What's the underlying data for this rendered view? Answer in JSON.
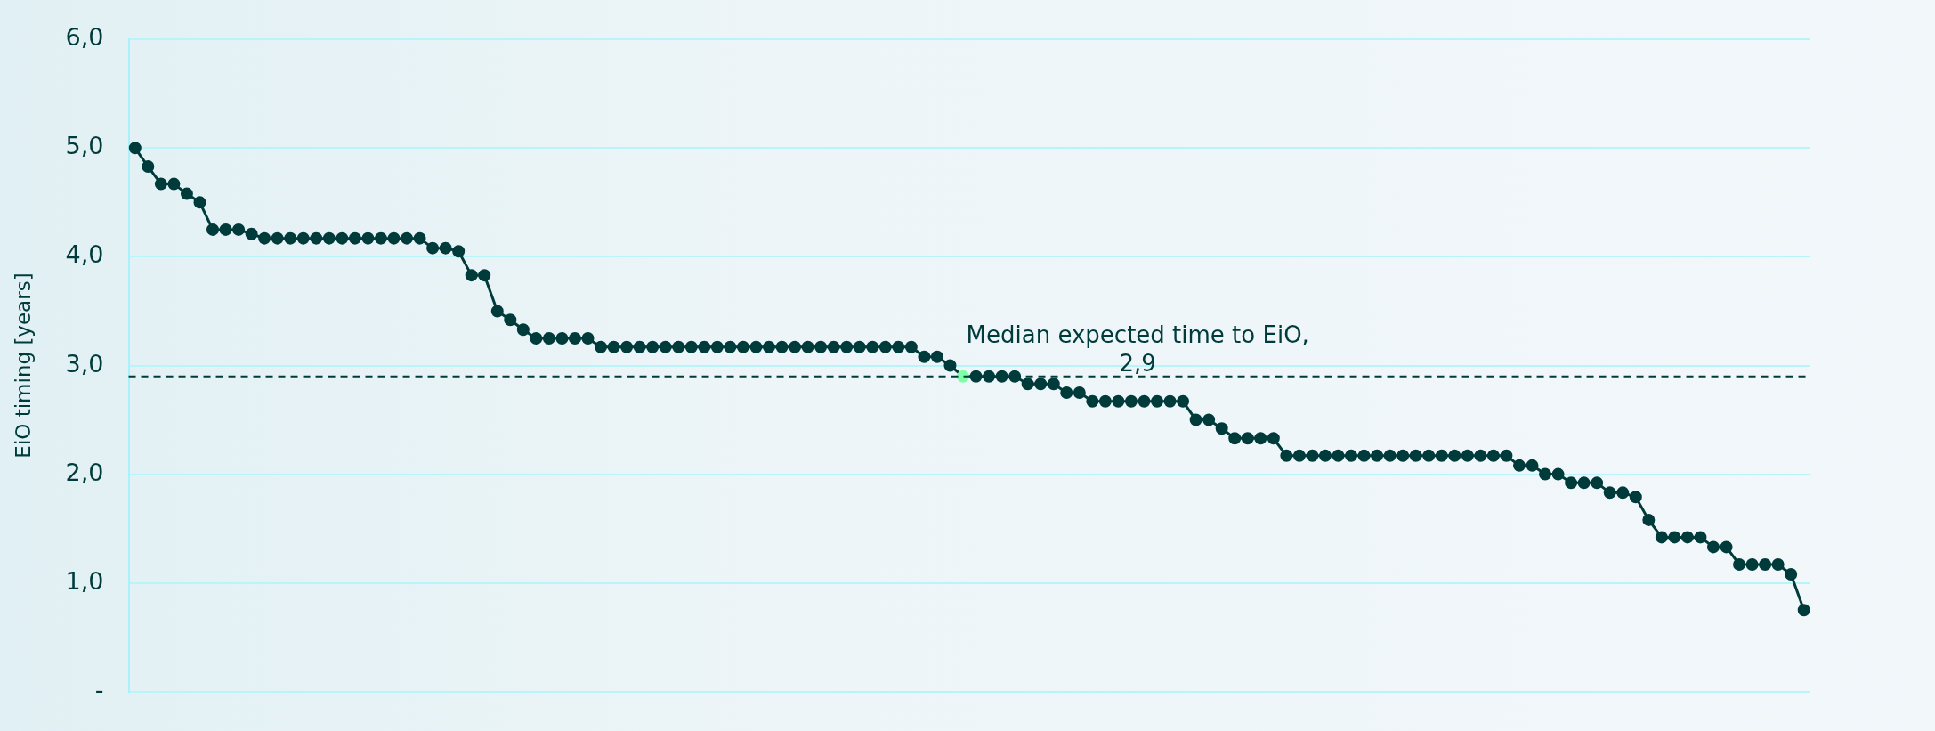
{
  "chart_data": {
    "type": "line",
    "ylabel": "EiO timing [years]",
    "categories": [
      null,
      null,
      null,
      null,
      null,
      null,
      null,
      null,
      null,
      null,
      null,
      null,
      null,
      null,
      null,
      null,
      null,
      null,
      null,
      null,
      null,
      null,
      null,
      null,
      null,
      null,
      null,
      null,
      null,
      null,
      null,
      null,
      null,
      null,
      null,
      null,
      null,
      null,
      null,
      null,
      null,
      null,
      null,
      null,
      null,
      null,
      null,
      null,
      null,
      null,
      null,
      null,
      null,
      null,
      null,
      null,
      null,
      null,
      null,
      null,
      null,
      null,
      null,
      null,
      null,
      null,
      null,
      null,
      null,
      null,
      null,
      null,
      null,
      null,
      null,
      null,
      null,
      null,
      null,
      null,
      null,
      null,
      null,
      null,
      null,
      null,
      null,
      null,
      null,
      null,
      null,
      null,
      null,
      null,
      null,
      null,
      null,
      null,
      null,
      null,
      null,
      null,
      null,
      null,
      null,
      null,
      null,
      null,
      null,
      null,
      null,
      null,
      null,
      null,
      null,
      null,
      null,
      null,
      null,
      null,
      null,
      null,
      null,
      null,
      null,
      null,
      null,
      null,
      null,
      null
    ],
    "series": [
      {
        "color": "#003b3b",
        "colors": [
          "#003b3b",
          "#003b3b",
          "#003b3b",
          "#003b3b",
          "#003b3b",
          "#003b3b",
          "#003b3b",
          "#003b3b",
          "#003b3b",
          "#003b3b",
          "#003b3b",
          "#003b3b",
          "#003b3b",
          "#003b3b",
          "#003b3b",
          "#003b3b",
          "#003b3b",
          "#003b3b",
          "#003b3b",
          "#003b3b",
          "#003b3b",
          "#003b3b",
          "#003b3b",
          "#003b3b",
          "#003b3b",
          "#003b3b",
          "#003b3b",
          "#003b3b",
          "#003b3b",
          "#003b3b",
          "#003b3b",
          "#003b3b",
          "#003b3b",
          "#003b3b",
          "#003b3b",
          "#003b3b",
          "#003b3b",
          "#003b3b",
          "#003b3b",
          "#003b3b",
          "#003b3b",
          "#003b3b",
          "#003b3b",
          "#003b3b",
          "#003b3b",
          "#003b3b",
          "#003b3b",
          "#003b3b",
          "#003b3b",
          "#003b3b",
          "#003b3b",
          "#003b3b",
          "#003b3b",
          "#003b3b",
          "#003b3b",
          "#003b3b",
          "#003b3b",
          "#003b3b",
          "#003b3b",
          "#003b3b",
          "#003b3b",
          "#003b3b",
          "#003b3b",
          "#003b3b",
          "#80ffa8",
          "#003b3b",
          "#003b3b",
          "#003b3b",
          "#003b3b",
          "#003b3b",
          "#003b3b",
          "#003b3b",
          "#003b3b",
          "#003b3b",
          "#003b3b",
          "#003b3b",
          "#003b3b",
          "#003b3b",
          "#003b3b",
          "#003b3b",
          "#003b3b",
          "#003b3b",
          "#003b3b",
          "#003b3b",
          "#003b3b",
          "#003b3b",
          "#003b3b",
          "#003b3b",
          "#003b3b",
          "#003b3b",
          "#003b3b",
          "#003b3b",
          "#003b3b",
          "#003b3b",
          "#003b3b",
          "#003b3b",
          "#003b3b",
          "#003b3b",
          "#003b3b",
          "#003b3b",
          "#003b3b",
          "#003b3b",
          "#003b3b",
          "#003b3b",
          "#003b3b",
          "#003b3b",
          "#003b3b",
          "#003b3b",
          "#003b3b",
          "#003b3b",
          "#003b3b",
          "#003b3b",
          "#003b3b",
          "#003b3b",
          "#003b3b",
          "#003b3b",
          "#003b3b",
          "#003b3b",
          "#003b3b",
          "#003b3b",
          "#003b3b",
          "#003b3b",
          "#003b3b",
          "#003b3b",
          "#003b3b",
          "#003b3b",
          "#003b3b",
          "#003b3b",
          "#003b3b",
          "#003b3b"
        ],
        "values": [
          5.0,
          4.83,
          4.67,
          4.67,
          4.58,
          4.5,
          4.25,
          4.25,
          4.25,
          4.21,
          4.17,
          4.17,
          4.17,
          4.17,
          4.17,
          4.17,
          4.17,
          4.17,
          4.17,
          4.17,
          4.17,
          4.17,
          4.17,
          4.08,
          4.08,
          4.05,
          3.83,
          3.83,
          3.5,
          3.42,
          3.33,
          3.25,
          3.25,
          3.25,
          3.25,
          3.25,
          3.17,
          3.17,
          3.17,
          3.17,
          3.17,
          3.17,
          3.17,
          3.17,
          3.17,
          3.17,
          3.17,
          3.17,
          3.17,
          3.17,
          3.17,
          3.17,
          3.17,
          3.17,
          3.17,
          3.17,
          3.17,
          3.17,
          3.17,
          3.17,
          3.17,
          3.08,
          3.08,
          3.0,
          2.9,
          2.9,
          2.9,
          2.9,
          2.9,
          2.83,
          2.83,
          2.83,
          2.75,
          2.75,
          2.67,
          2.67,
          2.67,
          2.67,
          2.67,
          2.67,
          2.67,
          2.67,
          2.5,
          2.5,
          2.42,
          2.33,
          2.33,
          2.33,
          2.33,
          2.17,
          2.17,
          2.17,
          2.17,
          2.17,
          2.17,
          2.17,
          2.17,
          2.17,
          2.17,
          2.17,
          2.17,
          2.17,
          2.17,
          2.17,
          2.17,
          2.17,
          2.17,
          2.08,
          2.08,
          2.0,
          2.0,
          1.92,
          1.92,
          1.92,
          1.83,
          1.83,
          1.79,
          1.58,
          1.42,
          1.42,
          1.42,
          1.42,
          1.33,
          1.33,
          1.17,
          1.17,
          1.17,
          1.17,
          1.08,
          0.75
        ]
      }
    ],
    "ylim": [
      0,
      6
    ],
    "yticks": [
      {
        "value": 0,
        "label": "-"
      },
      {
        "value": 1,
        "label": "1,0"
      },
      {
        "value": 2,
        "label": "2,0"
      },
      {
        "value": 3,
        "label": "3,0"
      },
      {
        "value": 4,
        "label": "4,0"
      },
      {
        "value": 5,
        "label": "5,0"
      },
      {
        "value": 6,
        "label": "6,0"
      }
    ],
    "grid": "y",
    "legend": false,
    "marker": "circle",
    "line_style": "solid",
    "ref_lines": [
      {
        "axis": "y",
        "value": 2.9,
        "label": "Median expected time to EiO,\n2,9",
        "line_style": "dashed",
        "color": "#003b3b"
      }
    ]
  }
}
